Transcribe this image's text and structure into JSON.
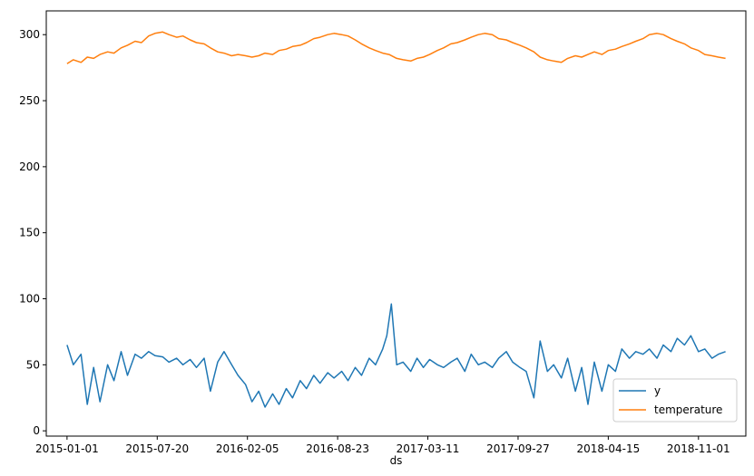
{
  "chart_data": {
    "type": "line",
    "title": "",
    "xlabel": "ds",
    "ylabel": "",
    "x_type": "date",
    "xlim": [
      "2014-11-16",
      "2019-02-14"
    ],
    "ylim": [
      -4,
      318
    ],
    "grid": false,
    "legend_position": "lower right",
    "x_ticks": [
      "2015-01-01",
      "2015-07-20",
      "2016-02-05",
      "2016-08-23",
      "2017-03-11",
      "2017-09-27",
      "2018-04-15",
      "2018-11-01"
    ],
    "y_ticks": [
      0,
      50,
      100,
      150,
      200,
      250,
      300
    ],
    "series": [
      {
        "name": "y",
        "color": "#1f77b4",
        "x": [
          "2015-01-01",
          "2015-01-15",
          "2015-02-01",
          "2015-02-15",
          "2015-03-01",
          "2015-03-15",
          "2015-04-01",
          "2015-04-15",
          "2015-05-01",
          "2015-05-15",
          "2015-06-01",
          "2015-06-15",
          "2015-07-01",
          "2015-07-15",
          "2015-08-01",
          "2015-08-15",
          "2015-09-01",
          "2015-09-15",
          "2015-10-01",
          "2015-10-15",
          "2015-11-01",
          "2015-11-15",
          "2015-12-01",
          "2015-12-15",
          "2016-01-01",
          "2016-01-15",
          "2016-02-01",
          "2016-02-15",
          "2016-03-01",
          "2016-03-15",
          "2016-04-01",
          "2016-04-15",
          "2016-05-01",
          "2016-05-15",
          "2016-06-01",
          "2016-06-15",
          "2016-07-01",
          "2016-07-15",
          "2016-08-01",
          "2016-08-15",
          "2016-09-01",
          "2016-09-15",
          "2016-10-01",
          "2016-10-15",
          "2016-11-01",
          "2016-11-15",
          "2016-12-01",
          "2016-12-10",
          "2016-12-20",
          "2017-01-01",
          "2017-01-15",
          "2017-02-01",
          "2017-02-15",
          "2017-03-01",
          "2017-03-15",
          "2017-04-01",
          "2017-04-15",
          "2017-05-01",
          "2017-05-15",
          "2017-06-01",
          "2017-06-15",
          "2017-07-01",
          "2017-07-15",
          "2017-08-01",
          "2017-08-15",
          "2017-09-01",
          "2017-09-15",
          "2017-10-01",
          "2017-10-15",
          "2017-11-01",
          "2017-11-15",
          "2017-12-01",
          "2017-12-15",
          "2018-01-01",
          "2018-01-15",
          "2018-02-01",
          "2018-02-15",
          "2018-03-01",
          "2018-03-15",
          "2018-04-01",
          "2018-04-15",
          "2018-05-01",
          "2018-05-15",
          "2018-06-01",
          "2018-06-15",
          "2018-07-01",
          "2018-07-15",
          "2018-08-01",
          "2018-08-15",
          "2018-09-01",
          "2018-09-15",
          "2018-10-01",
          "2018-10-15",
          "2018-11-01",
          "2018-11-15",
          "2018-12-01",
          "2018-12-15",
          "2018-12-31"
        ],
        "values": [
          65,
          50,
          58,
          20,
          48,
          22,
          50,
          38,
          60,
          42,
          58,
          55,
          60,
          57,
          56,
          52,
          55,
          50,
          54,
          48,
          55,
          30,
          52,
          60,
          50,
          42,
          35,
          22,
          30,
          18,
          28,
          20,
          32,
          25,
          38,
          32,
          42,
          36,
          44,
          40,
          45,
          38,
          48,
          42,
          55,
          50,
          62,
          72,
          96,
          50,
          52,
          45,
          55,
          48,
          54,
          50,
          48,
          52,
          55,
          45,
          58,
          50,
          52,
          48,
          55,
          60,
          52,
          48,
          45,
          25,
          68,
          45,
          50,
          40,
          55,
          30,
          48,
          20,
          52,
          30,
          50,
          45,
          62,
          55,
          60,
          58,
          62,
          55,
          65,
          60,
          70,
          65,
          72,
          60,
          62,
          55,
          58,
          60
        ]
      },
      {
        "name": "temperature",
        "color": "#ff7f0e",
        "x": [
          "2015-01-01",
          "2015-01-15",
          "2015-02-01",
          "2015-02-15",
          "2015-03-01",
          "2015-03-15",
          "2015-04-01",
          "2015-04-15",
          "2015-05-01",
          "2015-05-15",
          "2015-06-01",
          "2015-06-15",
          "2015-07-01",
          "2015-07-15",
          "2015-08-01",
          "2015-08-15",
          "2015-09-01",
          "2015-09-15",
          "2015-10-01",
          "2015-10-15",
          "2015-11-01",
          "2015-11-15",
          "2015-12-01",
          "2015-12-15",
          "2016-01-01",
          "2016-01-15",
          "2016-02-01",
          "2016-02-15",
          "2016-03-01",
          "2016-03-15",
          "2016-04-01",
          "2016-04-15",
          "2016-05-01",
          "2016-05-15",
          "2016-06-01",
          "2016-06-15",
          "2016-07-01",
          "2016-07-15",
          "2016-08-01",
          "2016-08-15",
          "2016-09-01",
          "2016-09-15",
          "2016-10-01",
          "2016-10-15",
          "2016-11-01",
          "2016-11-15",
          "2016-12-01",
          "2016-12-15",
          "2017-01-01",
          "2017-01-15",
          "2017-02-01",
          "2017-02-15",
          "2017-03-01",
          "2017-03-15",
          "2017-04-01",
          "2017-04-15",
          "2017-05-01",
          "2017-05-15",
          "2017-06-01",
          "2017-06-15",
          "2017-07-01",
          "2017-07-15",
          "2017-08-01",
          "2017-08-15",
          "2017-09-01",
          "2017-09-15",
          "2017-10-01",
          "2017-10-15",
          "2017-11-01",
          "2017-11-15",
          "2017-12-01",
          "2017-12-15",
          "2018-01-01",
          "2018-01-15",
          "2018-02-01",
          "2018-02-15",
          "2018-03-01",
          "2018-03-15",
          "2018-04-01",
          "2018-04-15",
          "2018-05-01",
          "2018-05-15",
          "2018-06-01",
          "2018-06-15",
          "2018-07-01",
          "2018-07-15",
          "2018-08-01",
          "2018-08-15",
          "2018-09-01",
          "2018-09-15",
          "2018-10-01",
          "2018-10-15",
          "2018-11-01",
          "2018-11-15",
          "2018-12-01",
          "2018-12-15",
          "2018-12-31"
        ],
        "values": [
          278,
          281,
          279,
          283,
          282,
          285,
          287,
          286,
          290,
          292,
          295,
          294,
          299,
          301,
          302,
          300,
          298,
          299,
          296,
          294,
          293,
          290,
          287,
          286,
          284,
          285,
          284,
          283,
          284,
          286,
          285,
          288,
          289,
          291,
          292,
          294,
          297,
          298,
          300,
          301,
          300,
          299,
          296,
          293,
          290,
          288,
          286,
          285,
          282,
          281,
          280,
          282,
          283,
          285,
          288,
          290,
          293,
          294,
          296,
          298,
          300,
          301,
          300,
          297,
          296,
          294,
          292,
          290,
          287,
          283,
          281,
          280,
          279,
          282,
          284,
          283,
          285,
          287,
          285,
          288,
          289,
          291,
          293,
          295,
          297,
          300,
          301,
          300,
          297,
          295,
          293,
          290,
          288,
          285,
          284,
          283,
          282
        ]
      }
    ]
  }
}
